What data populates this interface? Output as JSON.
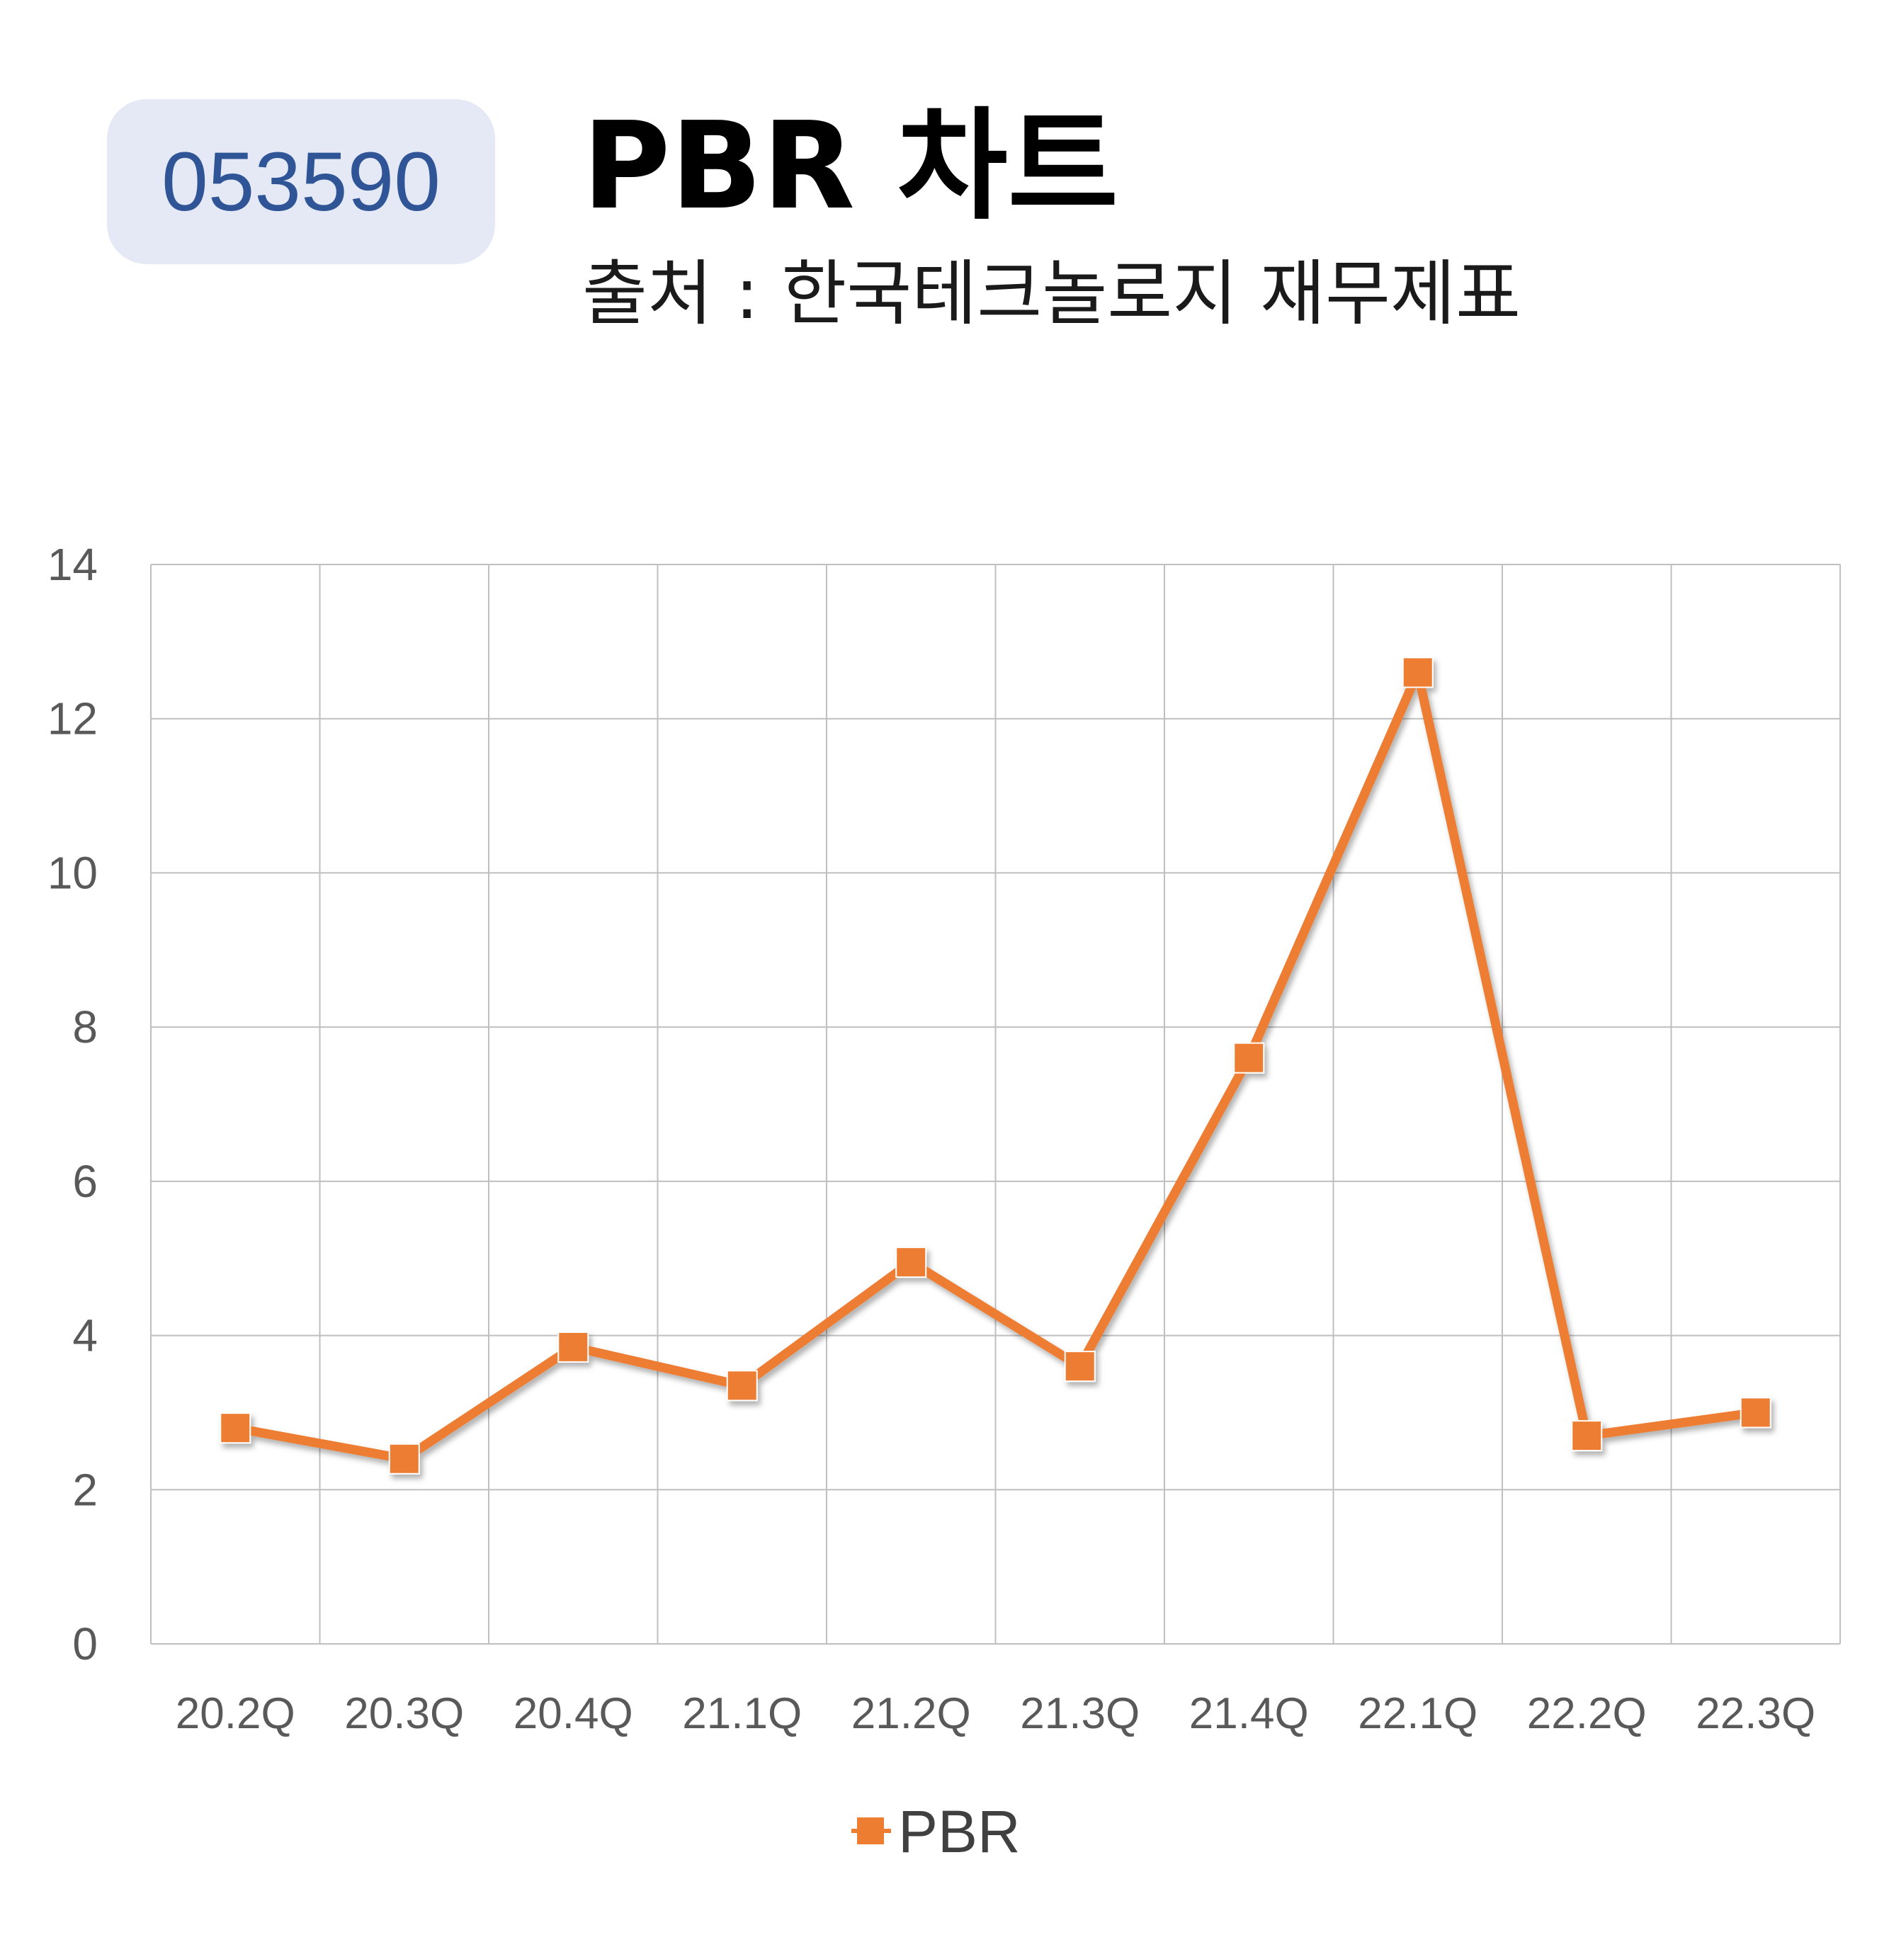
{
  "header": {
    "code": "053590",
    "title": "PBR 차트",
    "subtitle": "출처 : 한국테크놀로지 재무제표"
  },
  "chart_data": {
    "type": "line",
    "categories": [
      "20.2Q",
      "20.3Q",
      "20.4Q",
      "21.1Q",
      "21.2Q",
      "21.3Q",
      "21.4Q",
      "22.1Q",
      "22.2Q",
      "22.3Q"
    ],
    "series": [
      {
        "name": "PBR",
        "values": [
          2.8,
          2.4,
          3.85,
          3.35,
          4.95,
          3.6,
          7.6,
          12.6,
          2.7,
          3.0
        ],
        "color": "#ed7d31"
      }
    ],
    "ylim": [
      0,
      14
    ],
    "yticks": [
      0,
      2,
      4,
      6,
      8,
      10,
      12,
      14
    ],
    "grid": true,
    "legend": "bottom",
    "colors": {
      "grid": "#bfbfbf",
      "line": "#ed7d31",
      "badge_bg": "#e4e9f5",
      "badge_text": "#2f5597"
    }
  }
}
